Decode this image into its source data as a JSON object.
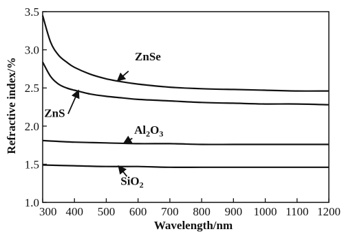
{
  "chart_data": {
    "type": "line",
    "xlabel": "Wavelength/nm",
    "ylabel": "Refractive index/%",
    "xlim": [
      300,
      1200
    ],
    "ylim": [
      1.0,
      3.5
    ],
    "x_ticks": [
      300,
      400,
      500,
      600,
      700,
      800,
      900,
      1000,
      1100,
      1200
    ],
    "y_ticks": [
      1.0,
      1.5,
      2.0,
      2.5,
      3.0,
      3.5
    ],
    "x_tick_labels": [
      "300",
      "400",
      "500",
      "600",
      "700",
      "800",
      "900",
      "1000",
      "1100",
      "1200"
    ],
    "y_tick_labels": [
      "1.0",
      "1.5",
      "2.0",
      "2.5",
      "3.0",
      "3.5"
    ],
    "grid": false,
    "series": [
      {
        "name": "ZnSe",
        "x": [
          300,
          325,
          350,
          375,
          400,
          450,
          500,
          550,
          600,
          700,
          800,
          900,
          1000,
          1100,
          1200
        ],
        "values": [
          3.45,
          3.1,
          2.93,
          2.84,
          2.77,
          2.68,
          2.62,
          2.58,
          2.55,
          2.51,
          2.49,
          2.48,
          2.47,
          2.46,
          2.46
        ]
      },
      {
        "name": "ZnS",
        "x": [
          300,
          325,
          350,
          375,
          400,
          450,
          500,
          550,
          600,
          700,
          800,
          900,
          1000,
          1100,
          1200
        ],
        "values": [
          2.84,
          2.65,
          2.55,
          2.5,
          2.47,
          2.42,
          2.39,
          2.37,
          2.35,
          2.33,
          2.31,
          2.3,
          2.29,
          2.29,
          2.28
        ]
      },
      {
        "name": "Al2O3",
        "x": [
          300,
          400,
          500,
          600,
          700,
          800,
          900,
          1000,
          1100,
          1200
        ],
        "values": [
          1.81,
          1.79,
          1.78,
          1.77,
          1.77,
          1.76,
          1.76,
          1.76,
          1.76,
          1.76
        ]
      },
      {
        "name": "SiO2",
        "x": [
          300,
          400,
          500,
          600,
          700,
          800,
          900,
          1000,
          1100,
          1200
        ],
        "values": [
          1.49,
          1.48,
          1.47,
          1.47,
          1.46,
          1.46,
          1.46,
          1.46,
          1.46,
          1.46
        ]
      }
    ],
    "annotations": [
      {
        "series": "ZnSe",
        "text": "ZnSe",
        "base": "ZnSe",
        "sub": "",
        "arrow_from": [
          570,
          2.72
        ],
        "arrow_to": [
          537,
          2.6
        ],
        "text_at": [
          590,
          2.86
        ]
      },
      {
        "series": "ZnS",
        "text": "ZnS",
        "base": "ZnS",
        "sub": "",
        "arrow_from": [
          380,
          2.16
        ],
        "arrow_to": [
          412,
          2.46
        ],
        "text_at": [
          305,
          2.12
        ]
      },
      {
        "series": "Al2O3",
        "text": "Al2O3",
        "base": "Al",
        "sub": "2",
        "base2": "O",
        "sub2": "3",
        "arrow_from": [
          582,
          1.84
        ],
        "arrow_to": [
          557,
          1.78
        ],
        "text_at": [
          588,
          1.9
        ]
      },
      {
        "series": "SiO2",
        "text": "SiO2",
        "base": "SiO",
        "sub": "2",
        "arrow_from": [
          565,
          1.34
        ],
        "arrow_to": [
          540,
          1.47
        ],
        "text_at": [
          545,
          1.23
        ]
      }
    ]
  }
}
